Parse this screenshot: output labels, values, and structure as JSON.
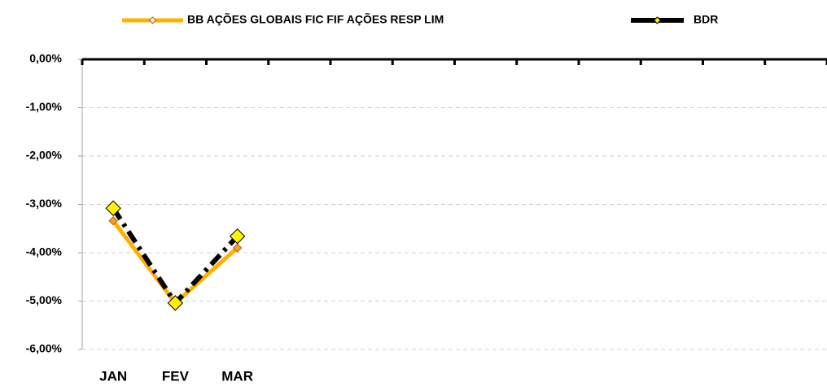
{
  "chart_data": {
    "type": "line",
    "categories": [
      "JAN",
      "FEV",
      "MAR",
      null,
      null,
      null,
      null,
      null,
      null,
      null,
      null,
      null
    ],
    "series": [
      {
        "name": "BB AÇÕES GLOBAIS FIC FIF AÇÕES RESP LIM",
        "color": "#FFB000",
        "marker_color": "#F0A030",
        "values": [
          -3.34,
          -5.04,
          -3.9,
          null,
          null,
          null,
          null,
          null,
          null,
          null,
          null,
          null
        ]
      },
      {
        "name": "BDR",
        "color": "#000000",
        "marker_color": "#FFF200",
        "values": [
          -3.08,
          -5.04,
          -3.66,
          null,
          null,
          null,
          null,
          null,
          null,
          null,
          null,
          null
        ]
      }
    ],
    "ylim": [
      -6,
      0
    ],
    "yticks": [
      {
        "value": 0,
        "label": "0,00%"
      },
      {
        "value": -1,
        "label": "-1,00%"
      },
      {
        "value": -2,
        "label": "-2,00%"
      },
      {
        "value": -3,
        "label": "-3,00%"
      },
      {
        "value": -4,
        "label": "-4,00%"
      },
      {
        "value": -5,
        "label": "-5,00%"
      },
      {
        "value": -6,
        "label": "-6,00%"
      }
    ],
    "grid": true,
    "legend": "top"
  }
}
